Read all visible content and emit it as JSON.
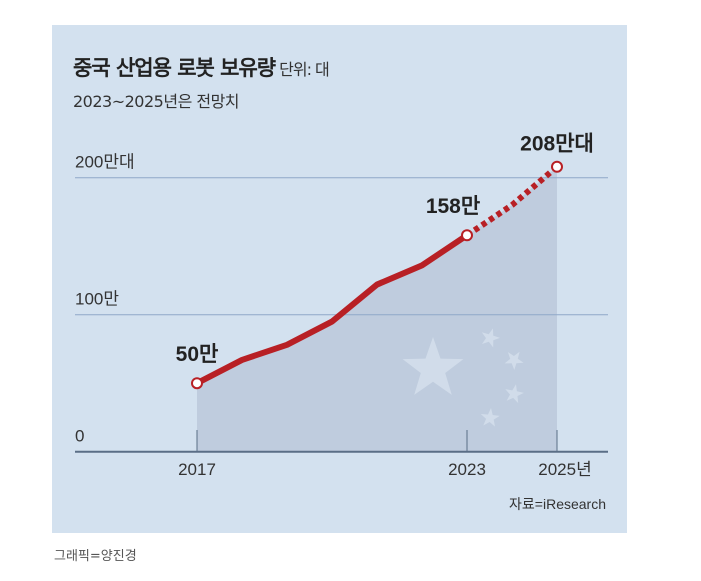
{
  "chart_data": {
    "type": "line",
    "title": "중국 산업용 로봇 보유량",
    "unit": "단위: 대",
    "subtitle": "2023~2025년은 전망치",
    "x": [
      2017,
      2018,
      2019,
      2020,
      2021,
      2022,
      2023,
      2024,
      2025
    ],
    "values": [
      50,
      67,
      78,
      95,
      122,
      136,
      158,
      180,
      208
    ],
    "value_unit": "만 대",
    "projected_from": 2023,
    "ylim": [
      0,
      220
    ],
    "y_ticks": [
      {
        "value": 0,
        "label": "0"
      },
      {
        "value": 100,
        "label": "100만"
      },
      {
        "value": 200,
        "label": "200만대"
      }
    ],
    "x_ticks": [
      {
        "value": 2017,
        "label": "2017"
      },
      {
        "value": 2023,
        "label": "2023"
      },
      {
        "value": 2025,
        "label": "2025년"
      }
    ],
    "data_labels": [
      {
        "x": 2017,
        "label": "50만"
      },
      {
        "x": 2023,
        "label": "158만"
      },
      {
        "x": 2025,
        "label": "208만대"
      }
    ],
    "grid": true,
    "source": "자료=iResearch",
    "colors": {
      "line": "#b82025",
      "area": "#bccadb",
      "background": "#d3e1ef",
      "grid": "#8fa8c8"
    }
  },
  "credit": "그래픽=양진경"
}
